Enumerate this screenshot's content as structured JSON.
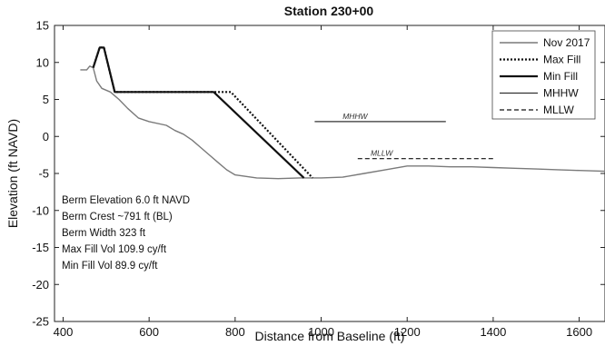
{
  "chart_data": {
    "type": "line",
    "title": "Station 230+00",
    "xlabel": "Distance from Baseline (ft)",
    "ylabel": "Elevation (ft NAVD)",
    "xlim": [
      380,
      1660
    ],
    "ylim": [
      -25,
      15
    ],
    "xticks": [
      400,
      600,
      800,
      1000,
      1200,
      1400,
      1600
    ],
    "yticks": [
      15,
      10,
      5,
      0,
      -5,
      -10,
      -15,
      -20,
      -25
    ],
    "grid": false,
    "legend_position": "top-right",
    "series": [
      {
        "name": "Nov 2017",
        "color": "#7a7a7a",
        "style": "solid",
        "x": [
          440,
          455,
          462,
          470,
          478,
          490,
          510,
          530,
          550,
          575,
          600,
          640,
          660,
          680,
          700,
          720,
          740,
          760,
          780,
          800,
          850,
          900,
          950,
          1000,
          1050,
          1100,
          1150,
          1200,
          1250,
          1300,
          1350,
          1400,
          1450,
          1500,
          1550,
          1600,
          1660
        ],
        "y": [
          9.0,
          9.0,
          9.5,
          9.3,
          7.5,
          6.5,
          6.0,
          5.0,
          3.8,
          2.5,
          2.0,
          1.5,
          0.8,
          0.3,
          -0.5,
          -1.5,
          -2.5,
          -3.5,
          -4.5,
          -5.2,
          -5.6,
          -5.7,
          -5.6,
          -5.6,
          -5.5,
          -5.0,
          -4.5,
          -4.0,
          -4.0,
          -4.1,
          -4.1,
          -4.2,
          -4.3,
          -4.4,
          -4.5,
          -4.6,
          -4.7
        ]
      },
      {
        "name": "Max Fill",
        "color": "#111111",
        "style": "dotted",
        "x": [
          470,
          485,
          495,
          520,
          790,
          980
        ],
        "y": [
          9.3,
          12.0,
          12.0,
          6.0,
          6.0,
          -5.6
        ]
      },
      {
        "name": "Min Fill",
        "color": "#111111",
        "style": "solid",
        "x": [
          470,
          485,
          495,
          520,
          750,
          960
        ],
        "y": [
          9.3,
          12.0,
          12.0,
          6.0,
          6.0,
          -5.6
        ]
      },
      {
        "name": "MHHW",
        "color": "#333333",
        "style": "solid",
        "x": [
          985,
          1290
        ],
        "y": [
          2.0,
          2.0
        ]
      },
      {
        "name": "MLLW",
        "color": "#111111",
        "style": "dashed",
        "x": [
          1085,
          1400
        ],
        "y": [
          -3.0,
          -3.0
        ]
      }
    ],
    "reference_labels": [
      {
        "text": "MHHW",
        "x": 1050,
        "y": 2.0
      },
      {
        "text": "MLLW",
        "x": 1115,
        "y": -3.0
      }
    ],
    "annotations": [
      "Berm Elevation 6.0 ft NAVD",
      "Berm Crest ~791 ft (BL)",
      "Berm Width 323 ft",
      "Max Fill Vol 109.9 cy/ft",
      "Min Fill Vol 89.9 cy/ft"
    ]
  }
}
